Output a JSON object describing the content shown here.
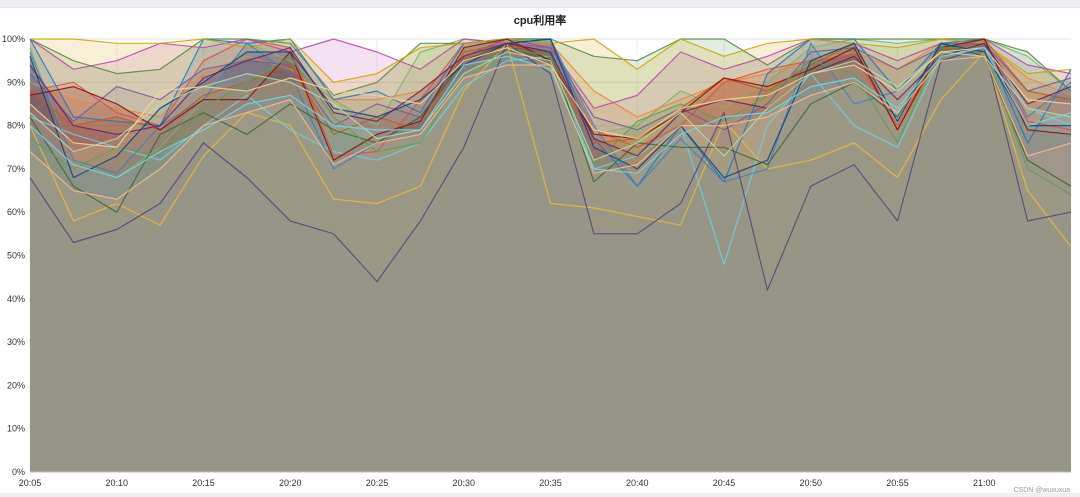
{
  "chart_data": {
    "type": "area",
    "title": "cpu利用率",
    "xlabel": "",
    "ylabel": "",
    "ylim": [
      0,
      100
    ],
    "yticks": [
      "0%",
      "10%",
      "20%",
      "30%",
      "40%",
      "50%",
      "60%",
      "70%",
      "80%",
      "90%",
      "100%"
    ],
    "xticks": [
      "20:05",
      "20:10",
      "20:15",
      "20:20",
      "20:25",
      "20:30",
      "20:35",
      "20:40",
      "20:45",
      "20:50",
      "20:55",
      "21:00"
    ],
    "x": [
      "20:05",
      "20:07.5",
      "20:10",
      "20:12.5",
      "20:15",
      "20:17.5",
      "20:20",
      "20:22.5",
      "20:25",
      "20:27.5",
      "20:30",
      "20:32.5",
      "20:35",
      "20:37.5",
      "20:40",
      "20:42.5",
      "20:45",
      "20:47.5",
      "20:50",
      "20:52.5",
      "20:55",
      "20:57.5",
      "21:00",
      "21:02.5",
      "21:05"
    ],
    "grid": true,
    "legend": "none",
    "series": [
      {
        "color": "#7eb26d",
        "values": [
          98,
          72,
          68,
          75,
          86,
          99,
          95,
          86,
          80,
          97,
          100,
          99,
          100,
          78,
          80,
          88,
          84,
          90,
          98,
          100,
          99,
          100,
          100,
          96,
          88
        ]
      },
      {
        "color": "#eab839",
        "values": [
          80,
          58,
          62,
          57,
          73,
          83,
          80,
          63,
          62,
          66,
          88,
          99,
          62,
          61,
          59,
          57,
          81,
          70,
          72,
          76,
          68,
          86,
          97,
          65,
          52
        ]
      },
      {
        "color": "#6ed0e0",
        "values": [
          82,
          78,
          75,
          72,
          80,
          87,
          79,
          74,
          72,
          76,
          89,
          95,
          96,
          70,
          73,
          80,
          48,
          80,
          92,
          80,
          75,
          96,
          98,
          84,
          80
        ]
      },
      {
        "color": "#ef843c",
        "values": [
          90,
          86,
          84,
          82,
          92,
          96,
          93,
          86,
          86,
          88,
          96,
          98,
          99,
          88,
          82,
          86,
          90,
          92,
          95,
          97,
          93,
          99,
          99,
          91,
          87
        ]
      },
      {
        "color": "#e24d42",
        "values": [
          88,
          90,
          83,
          80,
          95,
          100,
          98,
          73,
          74,
          86,
          99,
          100,
          99,
          79,
          75,
          80,
          90,
          93,
          95,
          96,
          80,
          98,
          100,
          81,
          79
        ]
      },
      {
        "color": "#1f78c1",
        "values": [
          100,
          82,
          81,
          80,
          100,
          99,
          100,
          86,
          88,
          83,
          99,
          100,
          100,
          77,
          66,
          80,
          67,
          92,
          100,
          100,
          88,
          99,
          99,
          76,
          93
        ]
      },
      {
        "color": "#ba43a9",
        "values": [
          100,
          93,
          95,
          99,
          98,
          100,
          97,
          100,
          97,
          93,
          100,
          99,
          98,
          84,
          87,
          97,
          93,
          96,
          100,
          99,
          95,
          99,
          100,
          94,
          92
        ]
      },
      {
        "color": "#705da0",
        "values": [
          92,
          81,
          89,
          86,
          93,
          95,
          94,
          80,
          85,
          82,
          96,
          100,
          98,
          82,
          79,
          84,
          79,
          85,
          97,
          98,
          93,
          98,
          99,
          88,
          91
        ]
      },
      {
        "color": "#508642",
        "values": [
          100,
          95,
          92,
          93,
          100,
          100,
          99,
          87,
          90,
          99,
          99,
          100,
          100,
          96,
          95,
          100,
          100,
          94,
          100,
          100,
          100,
          100,
          100,
          97,
          88
        ]
      },
      {
        "color": "#cca300",
        "values": [
          100,
          100,
          99,
          99,
          100,
          98,
          100,
          90,
          92,
          98,
          99,
          100,
          99,
          100,
          93,
          100,
          96,
          99,
          100,
          99,
          98,
          100,
          99,
          92,
          93
        ]
      },
      {
        "color": "#447ebc",
        "values": [
          97,
          72,
          69,
          80,
          86,
          99,
          92,
          70,
          76,
          82,
          95,
          99,
          100,
          80,
          66,
          77,
          67,
          70,
          99,
          85,
          88,
          99,
          100,
          82,
          90
        ]
      },
      {
        "color": "#c15c17",
        "values": [
          88,
          80,
          82,
          79,
          87,
          90,
          94,
          78,
          82,
          79,
          97,
          99,
          96,
          76,
          77,
          84,
          91,
          88,
          94,
          99,
          79,
          97,
          100,
          88,
          86
        ]
      },
      {
        "color": "#890f02",
        "values": [
          87,
          89,
          85,
          79,
          86,
          86,
          97,
          72,
          78,
          81,
          98,
          100,
          95,
          78,
          77,
          83,
          91,
          89,
          93,
          98,
          79,
          98,
          100,
          79,
          78
        ]
      },
      {
        "color": "#3f6833",
        "values": [
          82,
          66,
          60,
          78,
          83,
          78,
          85,
          79,
          76,
          82,
          95,
          99,
          97,
          67,
          76,
          75,
          75,
          71,
          85,
          90,
          82,
          99,
          96,
          72,
          66
        ]
      },
      {
        "color": "#629e51",
        "values": [
          77,
          70,
          75,
          73,
          84,
          90,
          96,
          82,
          74,
          76,
          92,
          98,
          96,
          71,
          81,
          85,
          81,
          87,
          95,
          92,
          76,
          98,
          98,
          70,
          64
        ]
      },
      {
        "color": "#0a437c",
        "values": [
          96,
          68,
          73,
          84,
          90,
          97,
          97,
          84,
          82,
          86,
          94,
          99,
          100,
          75,
          70,
          80,
          68,
          72,
          95,
          99,
          81,
          99,
          97,
          80,
          80
        ]
      },
      {
        "color": "#6d1f62",
        "values": [
          94,
          80,
          78,
          80,
          91,
          95,
          98,
          83,
          81,
          88,
          96,
          99,
          97,
          77,
          73,
          83,
          86,
          84,
          92,
          96,
          86,
          96,
          99,
          85,
          89
        ]
      },
      {
        "color": "#584477",
        "values": [
          68,
          53,
          56,
          62,
          76,
          68,
          58,
          55,
          44,
          58,
          75,
          99,
          92,
          55,
          55,
          62,
          83,
          42,
          66,
          71,
          58,
          95,
          98,
          58,
          60
        ]
      },
      {
        "color": "#b7dbab",
        "values": [
          83,
          74,
          77,
          85,
          89,
          92,
          90,
          85,
          77,
          79,
          92,
          97,
          95,
          72,
          76,
          83,
          73,
          84,
          92,
          95,
          89,
          97,
          96,
          84,
          82
        ]
      },
      {
        "color": "#f4d598",
        "values": [
          85,
          76,
          75,
          88,
          89,
          88,
          91,
          88,
          87,
          85,
          95,
          98,
          94,
          79,
          77,
          84,
          86,
          87,
          92,
          94,
          88,
          97,
          98,
          86,
          85
        ]
      },
      {
        "color": "#70dbed",
        "values": [
          80,
          71,
          68,
          74,
          79,
          85,
          87,
          80,
          79,
          79,
          94,
          96,
          93,
          70,
          69,
          78,
          82,
          83,
          89,
          91,
          84,
          96,
          98,
          80,
          83
        ]
      },
      {
        "color": "#f9ba8f",
        "values": [
          74,
          65,
          63,
          70,
          80,
          83,
          86,
          71,
          76,
          78,
          91,
          94,
          94,
          69,
          71,
          80,
          80,
          82,
          87,
          90,
          83,
          95,
          96,
          73,
          76
        ]
      }
    ]
  }
}
